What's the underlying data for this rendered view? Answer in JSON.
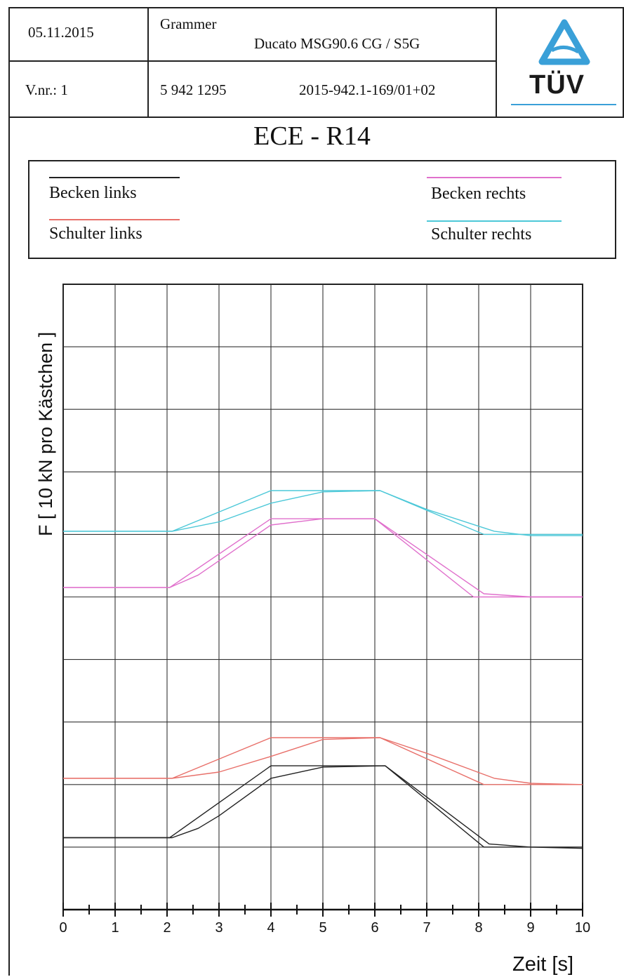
{
  "header": {
    "date": "05.11.2015",
    "company": "Grammer",
    "product": "Ducato MSG90.6 CG / S5G",
    "version": "V.nr.: 1",
    "number": "5 942 1295",
    "report": "2015-942.1-169/01+02",
    "logo_text": "TÜV"
  },
  "colors": {
    "becken_links": "#222222",
    "schulter_links": "#e8706a",
    "becken_rechts": "#e070cc",
    "schulter_rechts": "#4dc8d8"
  },
  "legend": [
    {
      "label": "Becken links",
      "color": "#222222"
    },
    {
      "label": "Schulter links",
      "color": "#e8706a"
    },
    {
      "label": "Becken rechts",
      "color": "#e070cc"
    },
    {
      "label": "Schulter rechts",
      "color": "#4dc8d8"
    }
  ],
  "chart_data": {
    "type": "line",
    "title": "ECE - R14",
    "xlabel": "Zeit [s]",
    "ylabel": "F [ 10 kN pro Kästchen ]",
    "xlim": [
      0,
      10
    ],
    "x_ticks": [
      "0",
      "1",
      "2",
      "3",
      "4",
      "5",
      "6",
      "7",
      "8",
      "9",
      "10"
    ],
    "grid": true,
    "legend_position": "top",
    "y_unit_note": "y in grid boxes (10 kN per box), counted from plot bottom",
    "ylim": [
      0,
      10
    ],
    "series": [
      {
        "name": "Schulter rechts",
        "color": "#4dc8d8",
        "lines": [
          [
            [
              0,
              6.05
            ],
            [
              2.1,
              6.05
            ],
            [
              4,
              6.7
            ],
            [
              6.1,
              6.7
            ],
            [
              8.1,
              6.0
            ],
            [
              10,
              6.0
            ]
          ],
          [
            [
              0,
              6.05
            ],
            [
              2.1,
              6.05
            ],
            [
              3,
              6.2
            ],
            [
              4,
              6.5
            ],
            [
              5,
              6.68
            ],
            [
              6.1,
              6.7
            ],
            [
              7,
              6.4
            ],
            [
              8.3,
              6.05
            ],
            [
              9,
              5.98
            ],
            [
              10,
              5.98
            ]
          ]
        ]
      },
      {
        "name": "Becken rechts",
        "color": "#e070cc",
        "lines": [
          [
            [
              0,
              5.15
            ],
            [
              2.05,
              5.15
            ],
            [
              4,
              6.25
            ],
            [
              6,
              6.25
            ],
            [
              7.9,
              5.0
            ],
            [
              10,
              5.0
            ]
          ],
          [
            [
              0,
              5.15
            ],
            [
              2.05,
              5.15
            ],
            [
              2.6,
              5.35
            ],
            [
              4,
              6.15
            ],
            [
              5,
              6.25
            ],
            [
              6,
              6.25
            ],
            [
              8.1,
              5.05
            ],
            [
              9,
              5.0
            ],
            [
              10,
              5.0
            ]
          ]
        ]
      },
      {
        "name": "Schulter links",
        "color": "#e8706a",
        "lines": [
          [
            [
              0,
              2.1
            ],
            [
              2.1,
              2.1
            ],
            [
              4,
              2.75
            ],
            [
              6.1,
              2.75
            ],
            [
              8.1,
              2.0
            ],
            [
              10,
              2.0
            ]
          ],
          [
            [
              0,
              2.1
            ],
            [
              2.1,
              2.1
            ],
            [
              3,
              2.2
            ],
            [
              4,
              2.45
            ],
            [
              5,
              2.72
            ],
            [
              6.1,
              2.75
            ],
            [
              7,
              2.5
            ],
            [
              8.3,
              2.1
            ],
            [
              9,
              2.02
            ],
            [
              10,
              2.0
            ]
          ]
        ]
      },
      {
        "name": "Becken links",
        "color": "#222222",
        "lines": [
          [
            [
              0,
              1.15
            ],
            [
              2.05,
              1.15
            ],
            [
              4,
              2.3
            ],
            [
              6.2,
              2.3
            ],
            [
              8.1,
              1.0
            ],
            [
              10,
              1.0
            ]
          ],
          [
            [
              0,
              1.15
            ],
            [
              2.1,
              1.15
            ],
            [
              2.6,
              1.3
            ],
            [
              3,
              1.5
            ],
            [
              4,
              2.1
            ],
            [
              5,
              2.28
            ],
            [
              6.2,
              2.3
            ],
            [
              8.2,
              1.05
            ],
            [
              9,
              1.0
            ],
            [
              10,
              0.98
            ]
          ]
        ]
      }
    ]
  }
}
